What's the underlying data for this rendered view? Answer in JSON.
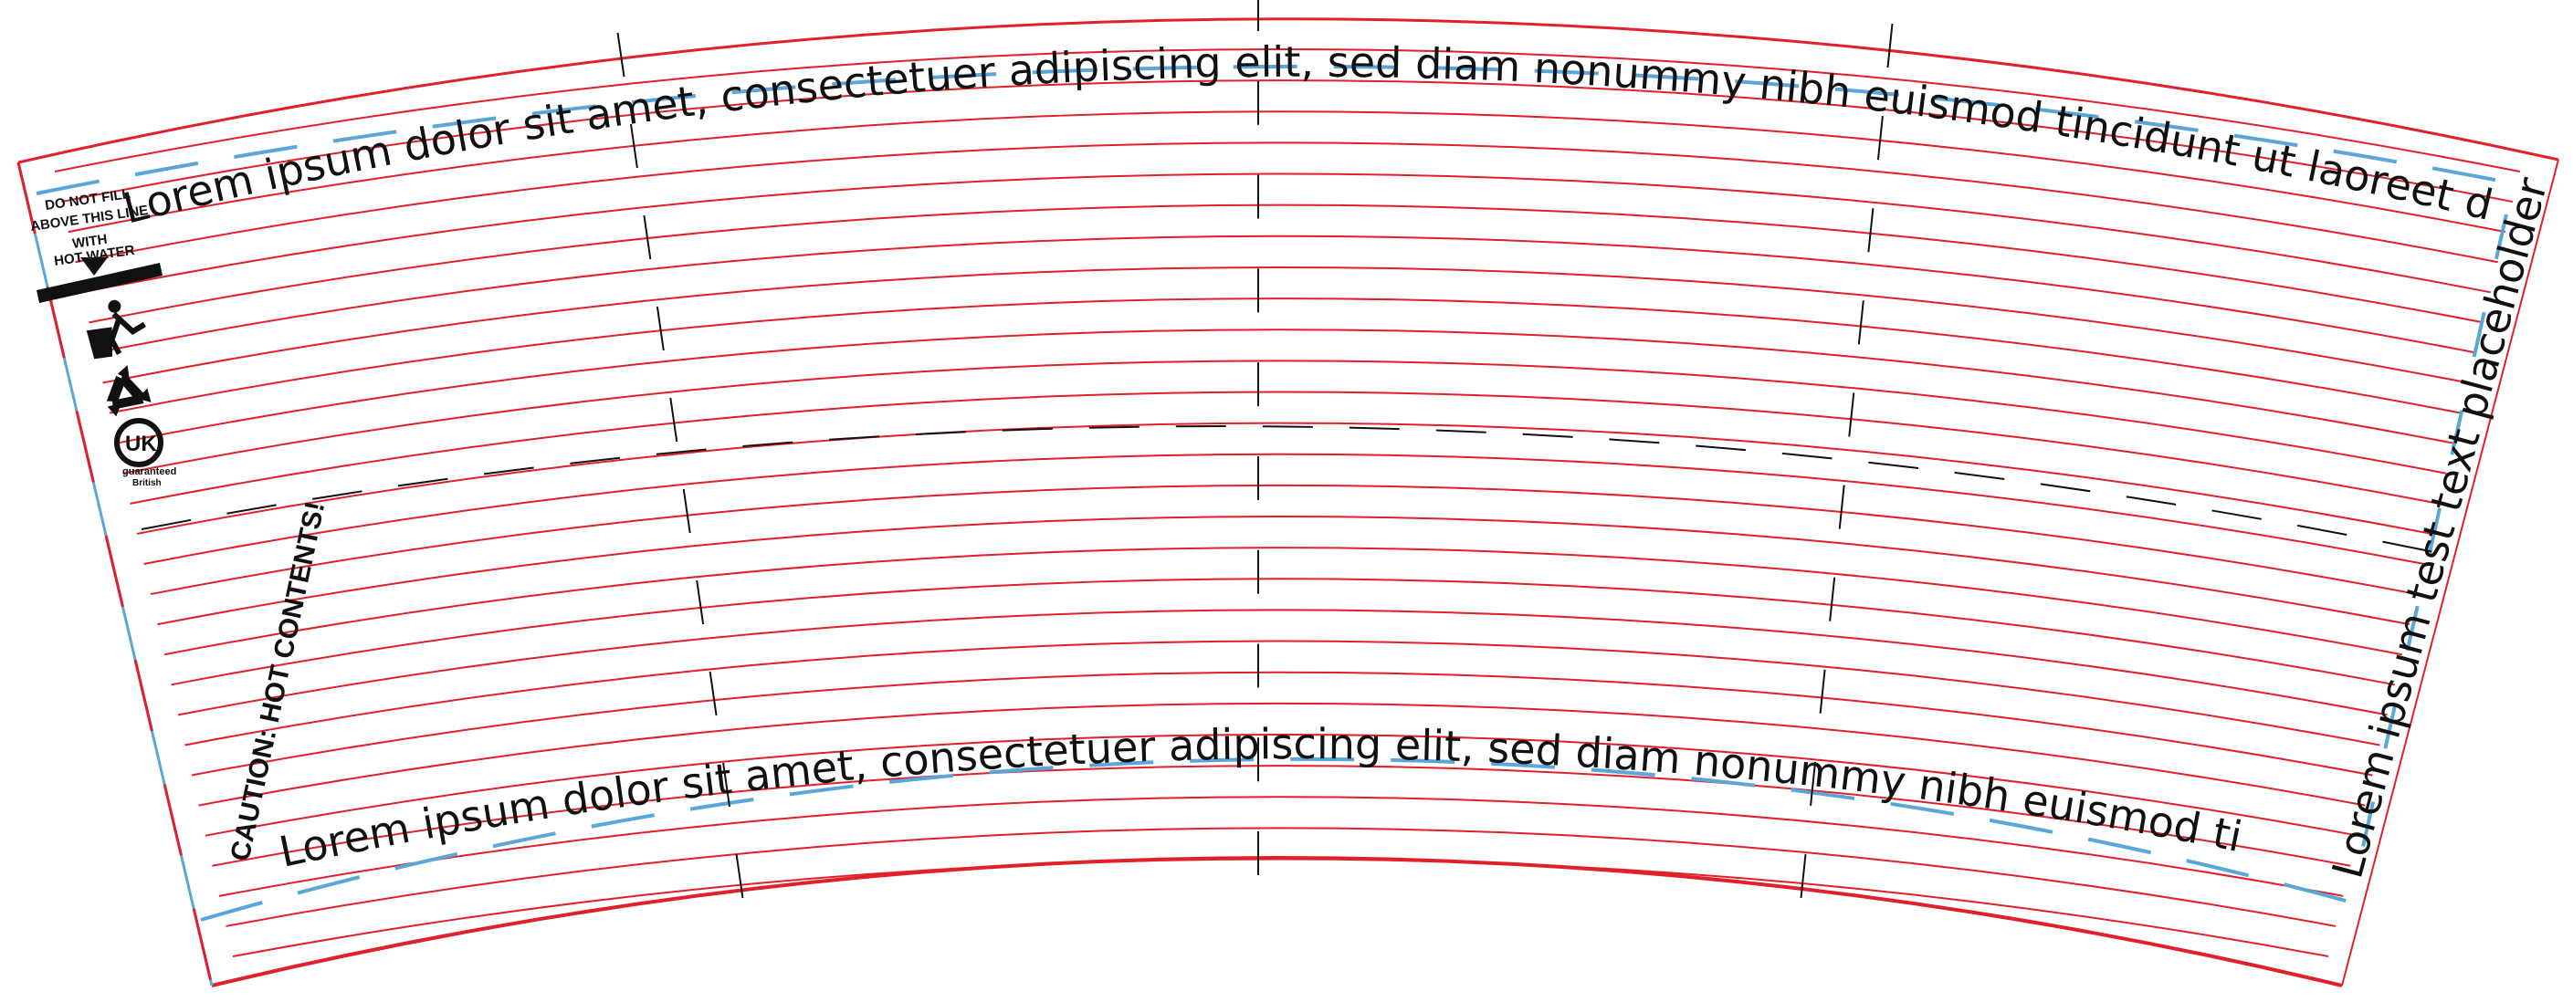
{
  "template": {
    "top_text": "Lorem ipsum dolor sit amet, consectetuer adipiscing elit, sed diam nonummy nibh euismod tincidunt ut laoreet dolore magna",
    "bottom_text": "Lorem ipsum dolor sit amet, consectetuer adipiscing elit, sed diam nonummy nibh euismod tincidunt ut",
    "side_text": "Lorem ipsum test text placeholder",
    "caution_text": "CAUTION: HOT CONTENTS!",
    "fill_warning": {
      "line1": "DO NOT FILL",
      "line2": "ABOVE THIS LINE",
      "line3": "WITH",
      "line4": "HOT WATER"
    },
    "uk_badge": {
      "mark": "UK",
      "line1": "guaranteed",
      "line2": "British"
    }
  },
  "colors": {
    "guide_red": "#e0202a",
    "bleed_blue": "#5aa6d8",
    "ink": "#111111"
  },
  "icons": [
    "tidyman-bin-icon",
    "recycle-icon",
    "uk-guaranteed-icon",
    "fill-arrow-icon"
  ]
}
